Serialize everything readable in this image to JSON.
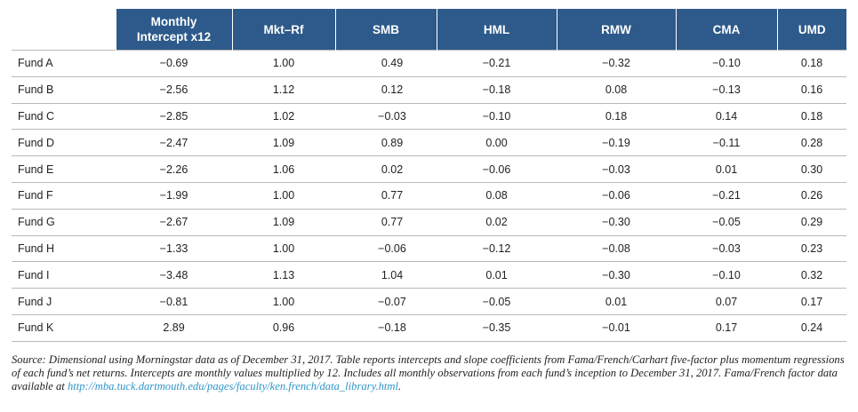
{
  "table": {
    "columns": [
      "Monthly Intercept x12",
      "Mkt–Rf",
      "SMB",
      "HML",
      "RMW",
      "CMA",
      "UMD"
    ],
    "header_intercept_line1": "Monthly",
    "header_intercept_line2": "Intercept x12",
    "rows": [
      {
        "fund": "Fund A",
        "values": [
          "−0.69",
          "1.00",
          "0.49",
          "−0.21",
          "−0.32",
          "−0.10",
          "0.18"
        ]
      },
      {
        "fund": "Fund B",
        "values": [
          "−2.56",
          "1.12",
          "0.12",
          "−0.18",
          "0.08",
          "−0.13",
          "0.16"
        ]
      },
      {
        "fund": "Fund C",
        "values": [
          "−2.85",
          "1.02",
          "−0.03",
          "−0.10",
          "0.18",
          "0.14",
          "0.18"
        ]
      },
      {
        "fund": "Fund D",
        "values": [
          "−2.47",
          "1.09",
          "0.89",
          "0.00",
          "−0.19",
          "−0.11",
          "0.28"
        ]
      },
      {
        "fund": "Fund E",
        "values": [
          "−2.26",
          "1.06",
          "0.02",
          "−0.06",
          "−0.03",
          "0.01",
          "0.30"
        ]
      },
      {
        "fund": "Fund F",
        "values": [
          "−1.99",
          "1.00",
          "0.77",
          "0.08",
          "−0.06",
          "−0.21",
          "0.26"
        ]
      },
      {
        "fund": "Fund G",
        "values": [
          "−2.67",
          "1.09",
          "0.77",
          "0.02",
          "−0.30",
          "−0.05",
          "0.29"
        ]
      },
      {
        "fund": "Fund H",
        "values": [
          "−1.33",
          "1.00",
          "−0.06",
          "−0.12",
          "−0.08",
          "−0.03",
          "0.23"
        ]
      },
      {
        "fund": "Fund I",
        "values": [
          "−3.48",
          "1.13",
          "1.04",
          "0.01",
          "−0.30",
          "−0.10",
          "0.32"
        ]
      },
      {
        "fund": "Fund J",
        "values": [
          "−0.81",
          "1.00",
          "−0.07",
          "−0.05",
          "0.01",
          "0.07",
          "0.17"
        ]
      },
      {
        "fund": "Fund K",
        "values": [
          "2.89",
          "0.96",
          "−0.18",
          "−0.35",
          "−0.01",
          "0.17",
          "0.24"
        ]
      }
    ]
  },
  "note": {
    "text": "Source: Dimensional using Morningstar data as of December 31, 2017. Table reports intercepts and slope coefficients from Fama/French/Carhart five-factor plus momentum regressions of each fund’s net returns. Intercepts are monthly values multiplied by 12. Includes all monthly observations from each fund’s inception to December 31, 2017. Fama/French factor data available at ",
    "link": "http://mba.tuck.dartmouth.edu/pages/faculty/ken.french/data_library.html",
    "end": "."
  },
  "colors": {
    "header_bg": "#2d5a8a",
    "link": "#2f95c8",
    "rule": "#b9b9b9"
  }
}
